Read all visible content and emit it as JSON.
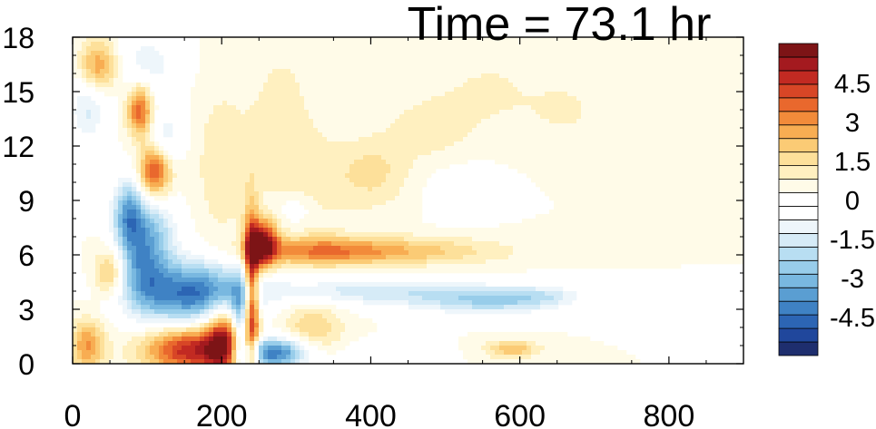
{
  "chart_data": {
    "type": "heatmap",
    "title": "Time = 73.1 hr",
    "xlabel": "",
    "ylabel": "",
    "xlim": [
      0,
      900
    ],
    "ylim": [
      0,
      18
    ],
    "x_ticks": [
      "0",
      "200",
      "400",
      "600",
      "800"
    ],
    "x_tick_values": [
      0,
      200,
      400,
      600,
      800
    ],
    "y_ticks": [
      "0",
      "3",
      "6",
      "9",
      "12",
      "15",
      "18"
    ],
    "y_tick_values": [
      0,
      3,
      6,
      9,
      12,
      15,
      18
    ],
    "colorbar": {
      "levels": [
        -5.5,
        -5,
        -4.5,
        -4,
        -3.5,
        -3,
        -2.5,
        -2,
        -1.5,
        -1,
        -0.5,
        0,
        0.5,
        1,
        1.5,
        2,
        2.5,
        3,
        3.5,
        4,
        4.5,
        5,
        5.5
      ],
      "colors": [
        "#1e2e6e",
        "#20479c",
        "#2c65b4",
        "#3f82c4",
        "#5a9ed2",
        "#79b8e0",
        "#98cdea",
        "#b8def2",
        "#d6ebf7",
        "#eef6fb",
        "#ffffff",
        "#ffffff",
        "#fffbe8",
        "#fff0c0",
        "#fde09a",
        "#fbcb75",
        "#f8ad52",
        "#f28b3a",
        "#e9682d",
        "#d84626",
        "#c22a22",
        "#a41a1f",
        "#7d1416"
      ],
      "labels": [
        "4.5",
        "3",
        "1.5",
        "0",
        "-1.5",
        "-3",
        "-4.5"
      ],
      "label_values": [
        4.5,
        3,
        1.5,
        0,
        -1.5,
        -3,
        -4.5
      ]
    },
    "features": [
      {
        "x": 160,
        "y": 0.8,
        "sx": 45,
        "sy": 0.9,
        "v": 4.6
      },
      {
        "x": 205,
        "y": 1.3,
        "sx": 18,
        "sy": 1.4,
        "v": 4.2
      },
      {
        "x": 240,
        "y": 3.5,
        "sx": 7,
        "sy": 3.2,
        "v": 5.0
      },
      {
        "x": 255,
        "y": 6.6,
        "sx": 14,
        "sy": 0.9,
        "v": 5.2
      },
      {
        "x": 330,
        "y": 6.2,
        "sx": 70,
        "sy": 0.55,
        "v": 2.4
      },
      {
        "x": 460,
        "y": 6.2,
        "sx": 90,
        "sy": 0.55,
        "v": 1.5
      },
      {
        "x": 270,
        "y": 0.6,
        "sx": 35,
        "sy": 0.6,
        "v": -4.8
      },
      {
        "x": 225,
        "y": 2.0,
        "sx": 10,
        "sy": 1.8,
        "v": -3.2
      },
      {
        "x": 160,
        "y": 3.9,
        "sx": 55,
        "sy": 1.3,
        "v": -4.4
      },
      {
        "x": 95,
        "y": 5.5,
        "sx": 22,
        "sy": 1.6,
        "v": -2.6
      },
      {
        "x": 75,
        "y": 8.2,
        "sx": 15,
        "sy": 1.4,
        "v": -3.5
      },
      {
        "x": 400,
        "y": 4.0,
        "sx": 120,
        "sy": 0.55,
        "v": -1.8
      },
      {
        "x": 560,
        "y": 3.4,
        "sx": 70,
        "sy": 0.5,
        "v": -2.1
      },
      {
        "x": 630,
        "y": 3.8,
        "sx": 40,
        "sy": 0.4,
        "v": -1.0
      },
      {
        "x": 110,
        "y": 10.6,
        "sx": 15,
        "sy": 1.0,
        "v": 3.8
      },
      {
        "x": 90,
        "y": 14.0,
        "sx": 12,
        "sy": 1.0,
        "v": 3.5
      },
      {
        "x": 35,
        "y": 16.4,
        "sx": 18,
        "sy": 1.0,
        "v": 2.6
      },
      {
        "x": 100,
        "y": 16.5,
        "sx": 30,
        "sy": 1.3,
        "v": -1.3
      },
      {
        "x": 20,
        "y": 14.0,
        "sx": 18,
        "sy": 1.4,
        "v": -1.6
      },
      {
        "x": 50,
        "y": 5.0,
        "sx": 14,
        "sy": 0.9,
        "v": 2.2
      },
      {
        "x": 20,
        "y": 1.0,
        "sx": 16,
        "sy": 1.0,
        "v": 2.6
      },
      {
        "x": 110,
        "y": 7.5,
        "sx": 22,
        "sy": 1.3,
        "v": -1.8
      },
      {
        "x": 125,
        "y": 12.5,
        "sx": 16,
        "sy": 1.1,
        "v": -1.4
      },
      {
        "x": 200,
        "y": 11.0,
        "sx": 25,
        "sy": 3.0,
        "v": 0.9
      },
      {
        "x": 280,
        "y": 12.5,
        "sx": 30,
        "sy": 3.5,
        "v": 0.9
      },
      {
        "x": 330,
        "y": 9.5,
        "sx": 25,
        "sy": 2.2,
        "v": 0.7
      },
      {
        "x": 400,
        "y": 10.5,
        "sx": 35,
        "sy": 1.4,
        "v": 1.2
      },
      {
        "x": 480,
        "y": 13.0,
        "sx": 40,
        "sy": 1.3,
        "v": 0.8
      },
      {
        "x": 560,
        "y": 15.0,
        "sx": 45,
        "sy": 1.5,
        "v": 0.6
      },
      {
        "x": 660,
        "y": 14.0,
        "sx": 35,
        "sy": 1.2,
        "v": 0.6
      },
      {
        "x": 320,
        "y": 1.8,
        "sx": 30,
        "sy": 1.2,
        "v": 1.5
      },
      {
        "x": 590,
        "y": 0.8,
        "sx": 25,
        "sy": 0.35,
        "v": 1.9
      },
      {
        "x": 420,
        "y": 0.5,
        "sx": 40,
        "sy": 0.5,
        "v": -0.9
      },
      {
        "x": 300,
        "y": 8.5,
        "sx": 25,
        "sy": 0.8,
        "v": -0.9
      },
      {
        "x": 520,
        "y": 9.5,
        "sx": 30,
        "sy": 1.0,
        "v": -0.6
      }
    ]
  }
}
